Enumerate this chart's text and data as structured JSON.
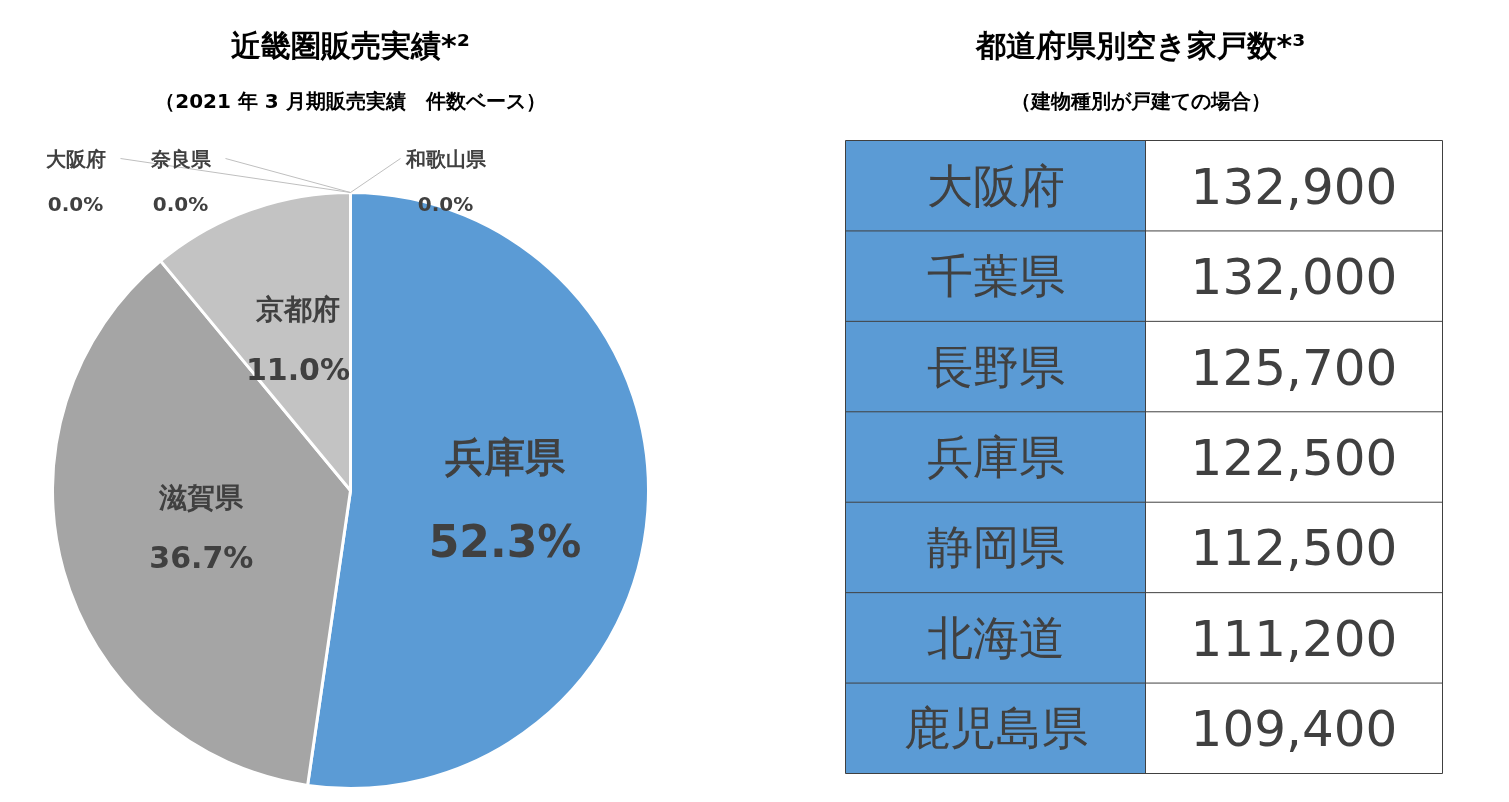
{
  "chart_data": [
    {
      "type": "pie",
      "title": "近畿圏販売実績*²",
      "subtitle": "（2021 年 3 月期販売実績　件数ベース）",
      "categories": [
        "兵庫県",
        "滋賀県",
        "京都府",
        "大阪府",
        "奈良県",
        "和歌山県"
      ],
      "values": [
        52.3,
        36.7,
        11.0,
        0.0,
        0.0,
        0.0
      ],
      "colors": [
        "#5b9bd5",
        "#a5a5a5",
        "#c3c3c3",
        "#7f7f7f",
        "#d9d9d9",
        "#9dc3e6"
      ],
      "value_labels": [
        "52.3%",
        "36.7%",
        "11.0%",
        "0.0%",
        "0.0%",
        "0.0%"
      ]
    },
    {
      "type": "other",
      "title": "都道府県別空き家戸数*³",
      "subtitle": "（建物種別が戸建ての場合）",
      "categories": [
        "大阪府",
        "千葉県",
        "長野県",
        "兵庫県",
        "静岡県",
        "北海道",
        "鹿児島県"
      ],
      "value_labels": [
        "132,900",
        "132,000",
        "125,700",
        "122,500",
        "112,500",
        "111,200",
        "109,400"
      ]
    }
  ]
}
